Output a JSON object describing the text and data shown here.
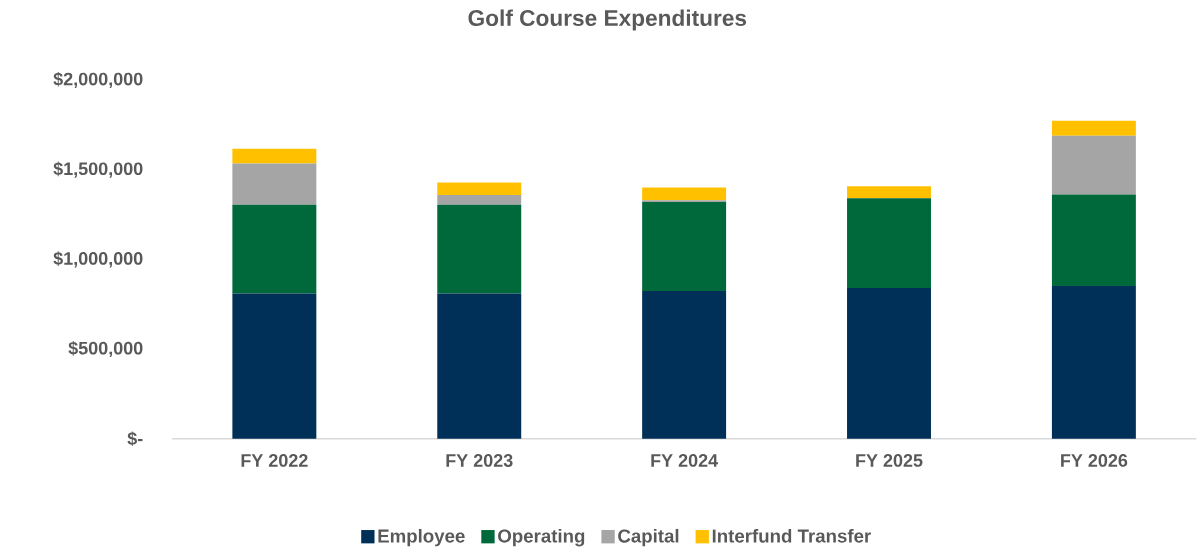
{
  "chart_data": {
    "type": "bar",
    "title": "Golf Course Expenditures",
    "stacked": true,
    "categories": [
      "FY 2022",
      "FY 2023",
      "FY 2024",
      "FY 2025",
      "FY 2026"
    ],
    "series": [
      {
        "name": "Employee",
        "color": "#003057",
        "values": [
          810000,
          810000,
          823000,
          840000,
          852000
        ]
      },
      {
        "name": "Operating",
        "color": "#00693c",
        "values": [
          494000,
          494000,
          497000,
          500000,
          510000
        ]
      },
      {
        "name": "Capital",
        "color": "#a5a5a5",
        "values": [
          231000,
          55000,
          9000,
          0,
          327000
        ]
      },
      {
        "name": "Interfund Transfer",
        "color": "#ffc000",
        "values": [
          81000,
          69000,
          71000,
          68000,
          84000
        ]
      }
    ],
    "ylim": [
      0,
      2000000
    ],
    "yticks": [
      {
        "value": 0,
        "label": "$-"
      },
      {
        "value": 500000,
        "label": "$500,000"
      },
      {
        "value": 1000000,
        "label": "$1,000,000"
      },
      {
        "value": 1500000,
        "label": "$1,500,000"
      },
      {
        "value": 2000000,
        "label": "$2,000,000"
      }
    ],
    "grid": false,
    "legend": "bottom"
  }
}
